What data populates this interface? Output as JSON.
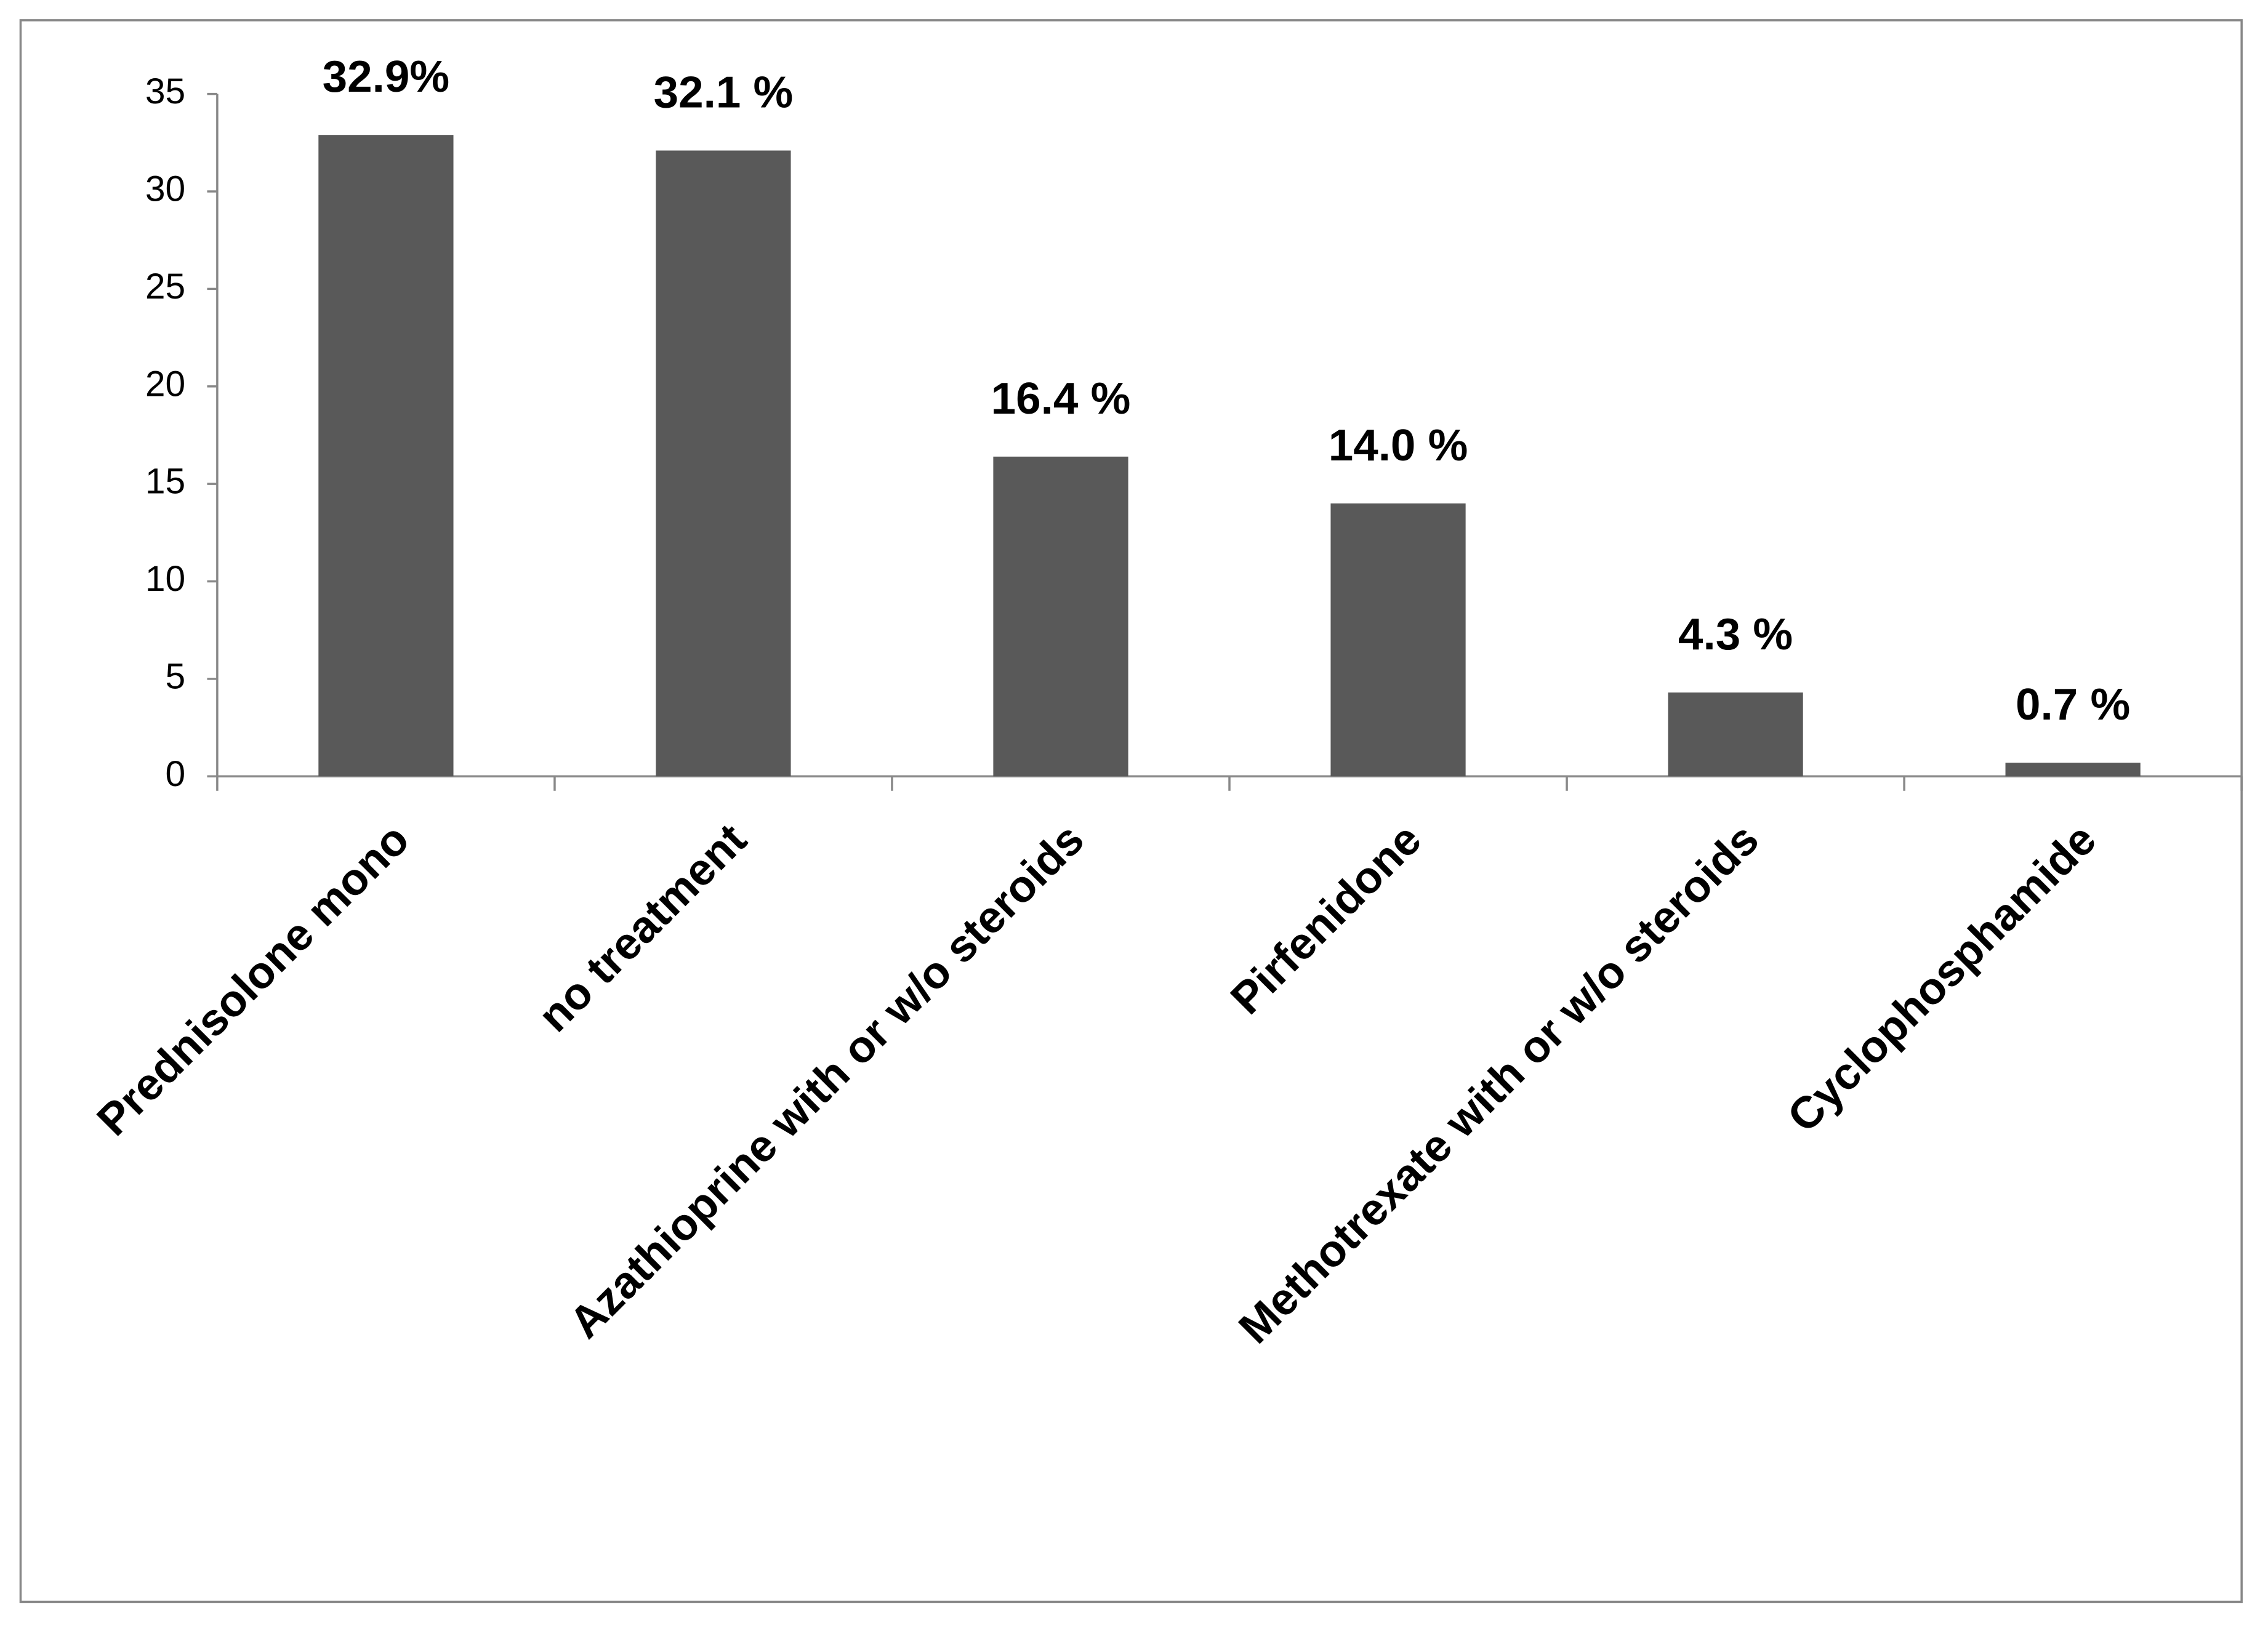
{
  "chart_data": {
    "type": "bar",
    "categories": [
      "Prednisolone mono",
      "no treatment",
      "Azathioprine with or w/o steroids",
      "Pirfenidone",
      "Methotrexate with or w/o steroids",
      "Cyclophosphamide"
    ],
    "values": [
      32.9,
      32.1,
      16.4,
      14.0,
      4.3,
      0.7
    ],
    "value_labels": [
      "32.9%",
      "32.1 %",
      "16.4 %",
      "14.0 %",
      "4.3 %",
      "0.7 %"
    ],
    "color": "#595959",
    "ylim": [
      0,
      35
    ],
    "yticks": [
      0,
      5,
      10,
      15,
      20,
      25,
      30,
      35
    ],
    "grid": false
  }
}
